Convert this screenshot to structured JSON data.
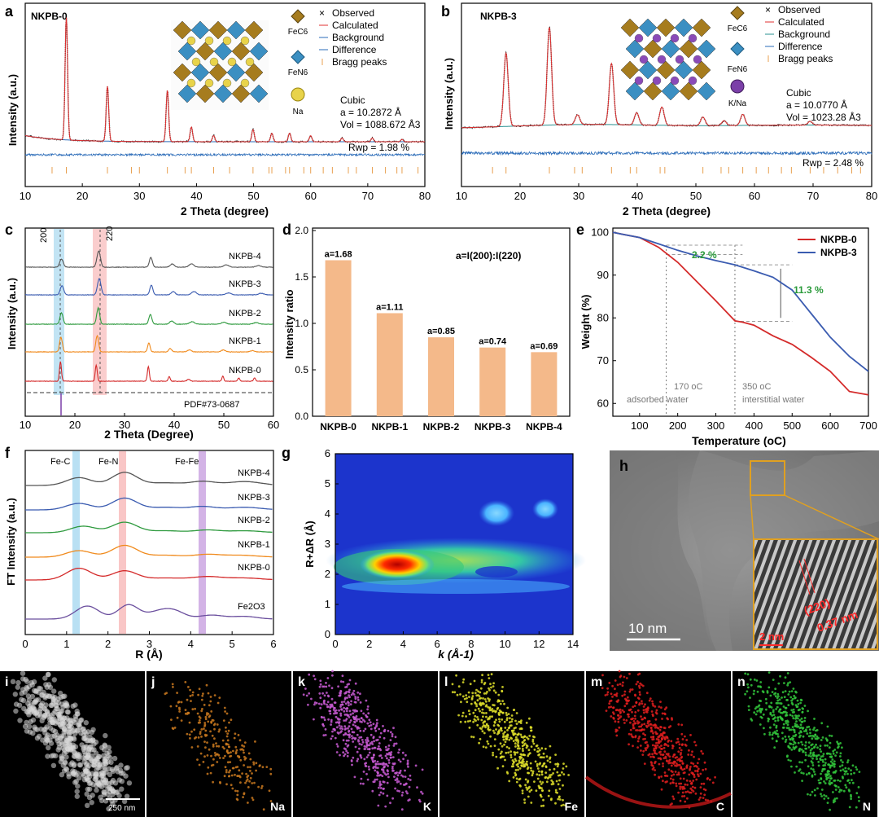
{
  "chart_data": [
    {
      "panel": "a",
      "type": "line",
      "sample": "NKPB-0",
      "xlabel": "2 Theta (degree)",
      "ylabel": "Intensity (a.u.)",
      "xlim": [
        10,
        80
      ],
      "xticks": [
        10,
        20,
        30,
        40,
        50,
        60,
        70,
        80
      ],
      "legend": [
        "Observed",
        "Calculated",
        "Background",
        "Difference",
        "Bragg peaks"
      ],
      "structure_labels": [
        "FeC6",
        "FeN6",
        "Na"
      ],
      "lattice": [
        "Cubic",
        "a = 10.2872 Å",
        "Vol = 1088.672 Å3"
      ],
      "rwp": "Rwp = 1.98 %",
      "peaks": [
        [
          17.2,
          1.0
        ],
        [
          24.4,
          0.45
        ],
        [
          34.9,
          0.42
        ],
        [
          39.1,
          0.12
        ],
        [
          43.0,
          0.05
        ],
        [
          49.9,
          0.1
        ],
        [
          53.2,
          0.07
        ],
        [
          56.3,
          0.07
        ],
        [
          60.0,
          0.05
        ],
        [
          65.5,
          0.03
        ],
        [
          70.8,
          0.03
        ],
        [
          76.0,
          0.02
        ]
      ],
      "bragg": [
        14.7,
        17.2,
        24.4,
        28.6,
        30.0,
        34.9,
        38.0,
        39.1,
        43.0,
        45.8,
        49.9,
        52.7,
        53.2,
        55.6,
        56.3,
        58.8,
        60.0,
        62.2,
        63.8,
        66.6,
        68.0,
        70.8,
        73.1,
        75.1,
        76.0,
        78.8
      ]
    },
    {
      "panel": "b",
      "type": "line",
      "sample": "NKPB-3",
      "xlabel": "2 Theta (degree)",
      "ylabel": "Intensity (a.u.)",
      "xlim": [
        10,
        80
      ],
      "xticks": [
        10,
        20,
        30,
        40,
        50,
        60,
        70,
        80
      ],
      "legend": [
        "Observed",
        "Calculated",
        "Background",
        "Difference",
        "Bragg peaks"
      ],
      "structure_labels": [
        "FeC6",
        "FeN6",
        "K/Na"
      ],
      "lattice": [
        "Cubic",
        "a = 10.0770 Å",
        "Vol = 1023.28 Å3"
      ],
      "rwp": "Rwp = 2.48 %",
      "peaks": [
        [
          17.6,
          0.6
        ],
        [
          25.0,
          0.8
        ],
        [
          29.8,
          0.08
        ],
        [
          35.6,
          0.5
        ],
        [
          39.9,
          0.1
        ],
        [
          44.2,
          0.15
        ],
        [
          51.2,
          0.07
        ],
        [
          54.8,
          0.04
        ],
        [
          58.0,
          0.09
        ],
        [
          69.5,
          0.03
        ]
      ],
      "bragg": [
        15.3,
        17.6,
        25.0,
        29.3,
        30.6,
        35.6,
        38.8,
        39.9,
        43.9,
        44.7,
        51.2,
        54.3,
        55.6,
        58.0,
        60.3,
        62.4,
        64.6,
        66.3,
        69.5,
        71.8,
        74.2,
        76.6,
        78.1
      ]
    },
    {
      "panel": "c",
      "type": "line",
      "xlabel": "2 Theta (Degree)",
      "ylabel": "Intensity (a.u.)",
      "xlim": [
        10,
        60
      ],
      "xticks": [
        10,
        20,
        30,
        40,
        50,
        60
      ],
      "series": [
        "NKPB-4",
        "NKPB-3",
        "NKPB-2",
        "NKPB-1",
        "NKPB-0"
      ],
      "colors": [
        "#555555",
        "#3a5bb0",
        "#2e9a3e",
        "#f08a1c",
        "#d42a2a"
      ],
      "peak_labels": [
        "200",
        "220"
      ],
      "reference": "PDF#73-0687"
    },
    {
      "panel": "d",
      "type": "bar",
      "ylabel": "Intensity ratio",
      "categories": [
        "NKPB-0",
        "NKPB-1",
        "NKPB-2",
        "NKPB-3",
        "NKPB-4"
      ],
      "values": [
        1.68,
        1.11,
        0.85,
        0.74,
        0.69
      ],
      "labels": [
        "a=1.68",
        "a=1.11",
        "a=0.85",
        "a=0.74",
        "a=0.69"
      ],
      "ylim": [
        0,
        2.0
      ],
      "yticks": [
        "0.0",
        "0.5",
        "1.0",
        "1.5",
        "2.0"
      ],
      "formula": "a=I(200):I(220)",
      "bar_color": "#f4b98a"
    },
    {
      "panel": "e",
      "type": "line",
      "xlabel": "Temperature (oC)",
      "ylabel": "Weight (%)",
      "xlim": [
        30,
        700
      ],
      "ylim": [
        57,
        101
      ],
      "xticks": [
        100,
        200,
        300,
        400,
        500,
        600,
        700
      ],
      "yticks": [
        60,
        70,
        80,
        90,
        100
      ],
      "series": [
        {
          "name": "NKPB-0",
          "color": "#d42a2a",
          "x": [
            30,
            100,
            150,
            200,
            250,
            300,
            350,
            370,
            400,
            450,
            500,
            550,
            600,
            650,
            700
          ],
          "y": [
            100,
            98.8,
            96.5,
            93,
            88.5,
            84,
            79.3,
            79,
            78.3,
            75.8,
            73.8,
            70.8,
            67.5,
            62.8,
            62
          ]
        },
        {
          "name": "NKPB-3",
          "color": "#3a5bb0",
          "x": [
            30,
            100,
            150,
            200,
            250,
            300,
            350,
            400,
            450,
            500,
            550,
            600,
            650,
            700
          ],
          "y": [
            100,
            98.8,
            97.3,
            95.8,
            94.5,
            93.4,
            92.4,
            91,
            89.5,
            86.5,
            81,
            75.5,
            71,
            67.5
          ]
        }
      ],
      "annotations": [
        "2.2 %",
        "11.3 %",
        "170 oC",
        "adsorbed water",
        "350 oC",
        "interstitial water"
      ]
    },
    {
      "panel": "f",
      "type": "line",
      "xlabel": "R (Å)",
      "ylabel": "FT Intensity (a.u.)",
      "xlim": [
        0,
        6
      ],
      "xticks": [
        0,
        1,
        2,
        3,
        4,
        5,
        6
      ],
      "series": [
        "NKPB-4",
        "NKPB-3",
        "NKPB-2",
        "NKPB-1",
        "NKPB-0",
        "Fe2O3"
      ],
      "colors": [
        "#555555",
        "#3a5bb0",
        "#2e9a3e",
        "#f08a1c",
        "#d42a2a",
        "#6b4f9e"
      ],
      "bands": [
        "Fe-C",
        "Fe-N",
        "Fe-Fe"
      ]
    },
    {
      "panel": "g",
      "type": "heatmap",
      "xlabel": "k (Å-1)",
      "ylabel": "R+ΔR (Å)",
      "xlim": [
        0,
        14
      ],
      "ylim": [
        0,
        6
      ],
      "xticks": [
        0,
        2,
        4,
        6,
        8,
        10,
        12,
        14
      ],
      "yticks": [
        0,
        1,
        2,
        3,
        4,
        5,
        6
      ]
    },
    {
      "panel": "h",
      "type": "image",
      "scale_bar": "10 nm",
      "inset_labels": [
        "(220)",
        "2 nm",
        "0.37 nm"
      ]
    },
    {
      "panel": "i-n",
      "type": "image",
      "maps": [
        {
          "panel": "i",
          "element": "",
          "scale": "250 nm",
          "color": "#d8d8d8"
        },
        {
          "panel": "j",
          "element": "Na",
          "color": "#c8781e"
        },
        {
          "panel": "k",
          "element": "K",
          "color": "#c85ad2"
        },
        {
          "panel": "l",
          "element": "Fe",
          "color": "#e0e02a"
        },
        {
          "panel": "m",
          "element": "C",
          "color": "#e01e1e"
        },
        {
          "panel": "n",
          "element": "N",
          "color": "#32c83c"
        }
      ]
    }
  ]
}
